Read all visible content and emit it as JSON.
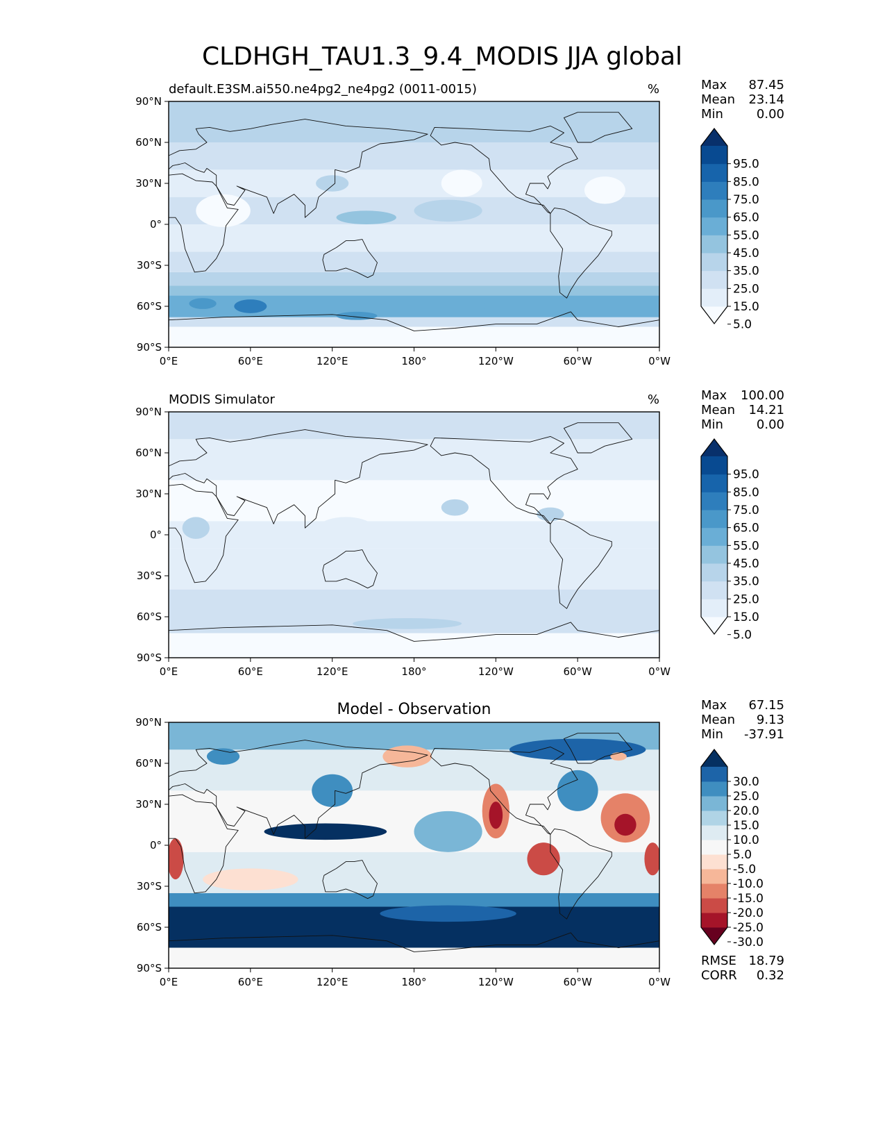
{
  "title": "CLDHGH_TAU1.3_9.4_MODIS JJA global",
  "chart_data": [
    {
      "type": "heatmap",
      "title": "default.E3SM.ai550.ne4pg2_ne4pg2 (0011-0015)",
      "units": "%",
      "xlim": [
        0,
        360
      ],
      "ylim": [
        -90,
        90
      ],
      "x_ticks": [
        "0°E",
        "60°E",
        "120°E",
        "180°",
        "120°W",
        "60°W",
        "0°W"
      ],
      "y_ticks": [
        "90°N",
        "60°N",
        "30°N",
        "0°",
        "30°S",
        "60°S",
        "90°S"
      ],
      "stats": [
        {
          "label": "Max",
          "value": "87.45"
        },
        {
          "label": "Mean",
          "value": "23.14"
        },
        {
          "label": "Min",
          "value": "0.00"
        }
      ],
      "colorbar": {
        "levels": [
          "95.0",
          "85.0",
          "75.0",
          "65.0",
          "55.0",
          "45.0",
          "35.0",
          "25.0",
          "15.0",
          "5.0"
        ],
        "colors": [
          "#f7fbff",
          "#e3eef9",
          "#d0e1f2",
          "#b7d4ea",
          "#94c4df",
          "#6aaed6",
          "#4a98c9",
          "#2e7ebc",
          "#1764ab",
          "#084a91",
          "#08306b"
        ]
      },
      "bands": [
        {
          "lat": [
            -90,
            -75
          ],
          "level": 0
        },
        {
          "lat": [
            -75,
            -68
          ],
          "level": 2
        },
        {
          "lat": [
            -68,
            -52
          ],
          "level": 5
        },
        {
          "lat": [
            -52,
            -45
          ],
          "level": 4
        },
        {
          "lat": [
            -45,
            -35
          ],
          "level": 3
        },
        {
          "lat": [
            -35,
            -20
          ],
          "level": 2
        },
        {
          "lat": [
            -20,
            0
          ],
          "level": 1
        },
        {
          "lat": [
            0,
            20
          ],
          "level": 2
        },
        {
          "lat": [
            20,
            40
          ],
          "level": 1
        },
        {
          "lat": [
            40,
            60
          ],
          "level": 2
        },
        {
          "lat": [
            60,
            90
          ],
          "level": 3
        }
      ],
      "blobs": [
        {
          "lon": 60,
          "lat": -60,
          "rx": 12,
          "ry": 5,
          "level": 7
        },
        {
          "lon": 25,
          "lat": -58,
          "rx": 10,
          "ry": 4,
          "level": 6
        },
        {
          "lon": 138,
          "lat": -67,
          "rx": 15,
          "ry": 3,
          "level": 6
        },
        {
          "lon": 250,
          "lat": -60,
          "rx": 20,
          "ry": 4,
          "level": 5
        },
        {
          "lon": 145,
          "lat": 5,
          "rx": 22,
          "ry": 5,
          "level": 4
        },
        {
          "lon": 120,
          "lat": 30,
          "rx": 12,
          "ry": 6,
          "level": 3
        },
        {
          "lon": 205,
          "lat": 10,
          "rx": 25,
          "ry": 8,
          "level": 3
        },
        {
          "lon": 40,
          "lat": 10,
          "rx": 20,
          "ry": 12,
          "level": 0
        },
        {
          "lon": 215,
          "lat": 30,
          "rx": 15,
          "ry": 10,
          "level": 0
        },
        {
          "lon": 320,
          "lat": 25,
          "rx": 15,
          "ry": 10,
          "level": 0
        }
      ]
    },
    {
      "type": "heatmap",
      "title": "MODIS Simulator",
      "units": "%",
      "xlim": [
        0,
        360
      ],
      "ylim": [
        -90,
        90
      ],
      "x_ticks": [
        "0°E",
        "60°E",
        "120°E",
        "180°",
        "120°W",
        "60°W",
        "0°W"
      ],
      "y_ticks": [
        "90°N",
        "60°N",
        "30°N",
        "0°",
        "30°S",
        "60°S",
        "90°S"
      ],
      "stats": [
        {
          "label": "Max",
          "value": "100.00"
        },
        {
          "label": "Mean",
          "value": "14.21"
        },
        {
          "label": "Min",
          "value": "0.00"
        }
      ],
      "colorbar": {
        "levels": [
          "95.0",
          "85.0",
          "75.0",
          "65.0",
          "55.0",
          "45.0",
          "35.0",
          "25.0",
          "15.0",
          "5.0"
        ],
        "colors": [
          "#f7fbff",
          "#e3eef9",
          "#d0e1f2",
          "#b7d4ea",
          "#94c4df",
          "#6aaed6",
          "#4a98c9",
          "#2e7ebc",
          "#1764ab",
          "#084a91",
          "#08306b"
        ]
      },
      "bands": [
        {
          "lat": [
            -90,
            -72
          ],
          "level": 0
        },
        {
          "lat": [
            -72,
            -40
          ],
          "level": 2
        },
        {
          "lat": [
            -40,
            -10
          ],
          "level": 1
        },
        {
          "lat": [
            -10,
            10
          ],
          "level": 1
        },
        {
          "lat": [
            10,
            40
          ],
          "level": 0
        },
        {
          "lat": [
            40,
            70
          ],
          "level": 1
        },
        {
          "lat": [
            70,
            90
          ],
          "level": 2
        }
      ],
      "blobs": [
        {
          "lon": 210,
          "lat": 20,
          "rx": 10,
          "ry": 6,
          "level": 3
        },
        {
          "lon": 280,
          "lat": 15,
          "rx": 10,
          "ry": 5,
          "level": 3
        },
        {
          "lon": 20,
          "lat": 5,
          "rx": 10,
          "ry": 8,
          "level": 3
        },
        {
          "lon": 130,
          "lat": 5,
          "rx": 20,
          "ry": 8,
          "level": 1
        },
        {
          "lon": 175,
          "lat": -65,
          "rx": 40,
          "ry": 4,
          "level": 3
        }
      ]
    },
    {
      "type": "heatmap",
      "title": "Model - Observation",
      "xlim": [
        0,
        360
      ],
      "ylim": [
        -90,
        90
      ],
      "x_ticks": [
        "0°E",
        "60°E",
        "120°E",
        "180°",
        "120°W",
        "60°W",
        "0°W"
      ],
      "y_ticks": [
        "90°N",
        "60°N",
        "30°N",
        "0°",
        "30°S",
        "60°S",
        "90°S"
      ],
      "stats": [
        {
          "label": "Max",
          "value": "67.15"
        },
        {
          "label": "Mean",
          "value": "9.13"
        },
        {
          "label": "Min",
          "value": "-37.91"
        }
      ],
      "extra_stats": [
        {
          "label": "RMSE",
          "value": "18.79"
        },
        {
          "label": "CORR",
          "value": "0.32"
        }
      ],
      "colorbar": {
        "levels": [
          "30.0",
          "25.0",
          "20.0",
          "15.0",
          "10.0",
          "5.0",
          "-5.0",
          "-10.0",
          "-15.0",
          "-20.0",
          "-25.0",
          "-30.0"
        ],
        "colors": [
          "#67001f",
          "#a51429",
          "#cb4b46",
          "#e58268",
          "#f6b799",
          "#fde0d2",
          "#f7f7f7",
          "#deebf2",
          "#b0d4e6",
          "#7ab6d6",
          "#3f8ec0",
          "#1d64a8",
          "#053061"
        ]
      },
      "bands": [
        {
          "lat": [
            -90,
            -75
          ],
          "level": 6
        },
        {
          "lat": [
            -75,
            -45
          ],
          "level": 12
        },
        {
          "lat": [
            -45,
            -35
          ],
          "level": 10
        },
        {
          "lat": [
            -35,
            -5
          ],
          "level": 7
        },
        {
          "lat": [
            -5,
            40
          ],
          "level": 6
        },
        {
          "lat": [
            40,
            70
          ],
          "level": 7
        },
        {
          "lat": [
            70,
            90
          ],
          "level": 9
        }
      ],
      "blobs": [
        {
          "lon": 115,
          "lat": 10,
          "rx": 45,
          "ry": 6,
          "level": 12
        },
        {
          "lon": 120,
          "lat": 40,
          "rx": 15,
          "ry": 12,
          "level": 10
        },
        {
          "lon": 205,
          "lat": 10,
          "rx": 25,
          "ry": 15,
          "level": 9
        },
        {
          "lon": 40,
          "lat": 65,
          "rx": 12,
          "ry": 6,
          "level": 10
        },
        {
          "lon": 300,
          "lat": 70,
          "rx": 50,
          "ry": 8,
          "level": 11
        },
        {
          "lon": 300,
          "lat": 40,
          "rx": 15,
          "ry": 15,
          "level": 10
        },
        {
          "lon": 240,
          "lat": 25,
          "rx": 10,
          "ry": 20,
          "level": 3
        },
        {
          "lon": 240,
          "lat": 22,
          "rx": 5,
          "ry": 10,
          "level": 1
        },
        {
          "lon": 335,
          "lat": 20,
          "rx": 18,
          "ry": 18,
          "level": 3
        },
        {
          "lon": 335,
          "lat": 15,
          "rx": 8,
          "ry": 8,
          "level": 1
        },
        {
          "lon": 275,
          "lat": -10,
          "rx": 12,
          "ry": 12,
          "level": 2
        },
        {
          "lon": 5,
          "lat": -10,
          "rx": 6,
          "ry": 15,
          "level": 2
        },
        {
          "lon": 355,
          "lat": -10,
          "rx": 6,
          "ry": 12,
          "level": 2
        },
        {
          "lon": 175,
          "lat": 65,
          "rx": 18,
          "ry": 8,
          "level": 4
        },
        {
          "lon": 60,
          "lat": -25,
          "rx": 35,
          "ry": 8,
          "level": 5
        },
        {
          "lon": 330,
          "lat": 65,
          "rx": 6,
          "ry": 3,
          "level": 4
        },
        {
          "lon": 205,
          "lat": -50,
          "rx": 50,
          "ry": 6,
          "level": 11
        }
      ]
    }
  ]
}
